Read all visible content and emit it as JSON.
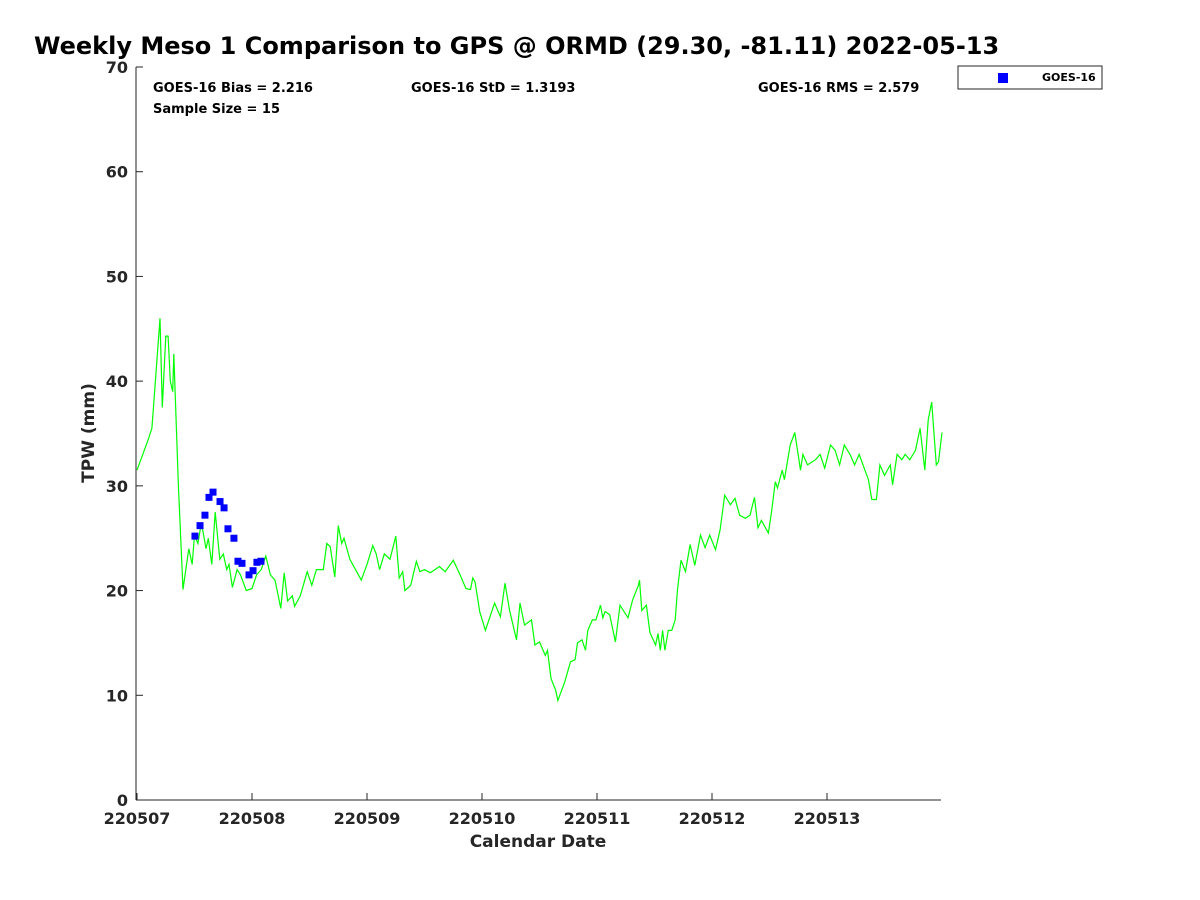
{
  "chart_data": {
    "type": "line",
    "title": "Weekly Meso 1 Comparison to GPS @ ORMD (29.30, -81.11) 2022-05-13",
    "xlabel": "Calendar Date",
    "ylabel": "TPW (mm)",
    "xlim": [
      0,
      7
    ],
    "ylim": [
      0,
      70
    ],
    "x_units": "days since 220507",
    "xticks": [
      0,
      1,
      2,
      3,
      4,
      5,
      6
    ],
    "xtick_labels": [
      "220507",
      "220508",
      "220509",
      "220510",
      "220511",
      "220512",
      "220513"
    ],
    "yticks": [
      0,
      10,
      20,
      30,
      40,
      50,
      60,
      70
    ],
    "ytick_labels": [
      "0",
      "10",
      "20",
      "30",
      "40",
      "50",
      "60",
      "70"
    ],
    "grid": false,
    "legend": {
      "placement": "top-right outside",
      "entries": [
        "GOES-16"
      ]
    },
    "annotations": {
      "bias": "GOES-16 Bias = 2.216",
      "std": "GOES-16 StD = 1.3193",
      "rms": "GOES-16 RMS = 2.579",
      "sample": "Sample Size = 15"
    },
    "series": [
      {
        "name": "GPS",
        "kind": "line",
        "color": "#00ff00",
        "x": [
          0,
          0.05,
          0.1,
          0.13,
          0.16,
          0.2,
          0.22,
          0.25,
          0.27,
          0.29,
          0.31,
          0.32,
          0.36,
          0.4,
          0.45,
          0.48,
          0.5,
          0.53,
          0.56,
          0.6,
          0.62,
          0.65,
          0.68,
          0.72,
          0.75,
          0.78,
          0.8,
          0.83,
          0.87,
          0.9,
          0.95,
          1.0,
          1.04,
          1.08,
          1.12,
          1.16,
          1.2,
          1.25,
          1.28,
          1.31,
          1.35,
          1.37,
          1.42,
          1.48,
          1.52,
          1.56,
          1.62,
          1.65,
          1.68,
          1.72,
          1.75,
          1.78,
          1.8,
          1.85,
          1.9,
          1.95,
          2.0,
          2.05,
          2.08,
          2.11,
          2.15,
          2.2,
          2.25,
          2.28,
          2.31,
          2.33,
          2.38,
          2.43,
          2.46,
          2.5,
          2.55,
          2.63,
          2.68,
          2.75,
          2.81,
          2.86,
          2.9,
          2.92,
          2.94,
          2.98,
          3.03,
          3.11,
          3.16,
          3.2,
          3.24,
          3.3,
          3.33,
          3.37,
          3.43,
          3.46,
          3.5,
          3.55,
          3.57,
          3.6,
          3.64,
          3.66,
          3.72,
          3.77,
          3.81,
          3.83,
          3.87,
          3.9,
          3.92,
          3.96,
          3.99,
          4.03,
          4.05,
          4.07,
          4.11,
          4.16,
          4.2,
          4.27,
          4.31,
          4.36,
          4.37,
          4.39,
          4.43,
          4.46,
          4.51,
          4.53,
          4.55,
          4.57,
          4.59,
          4.62,
          4.65,
          4.68,
          4.7,
          4.73,
          4.77,
          4.81,
          4.85,
          4.9,
          4.94,
          4.98,
          5.03,
          5.07,
          5.11,
          5.16,
          5.2,
          5.24,
          5.29,
          5.33,
          5.37,
          5.4,
          5.43,
          5.49,
          5.52,
          5.55,
          5.57,
          5.61,
          5.63,
          5.68,
          5.72,
          5.77,
          5.79,
          5.83,
          5.9,
          5.94,
          5.98,
          6.03,
          6.07,
          6.11,
          6.15,
          6.2,
          6.24,
          6.28,
          6.33,
          6.36,
          6.39,
          6.43,
          6.46,
          6.5,
          6.55,
          6.57,
          6.61,
          6.65,
          6.68,
          6.72,
          6.77,
          6.81,
          6.85,
          6.88,
          6.91,
          6.95,
          6.97,
          7.0
        ],
        "y": [
          31.5,
          33,
          34.5,
          35.5,
          40,
          46,
          37.5,
          44.3,
          44.3,
          40,
          39,
          42.6,
          30,
          20.1,
          24,
          22.5,
          25.3,
          24.5,
          26.5,
          24,
          25,
          22.5,
          27.5,
          23,
          23.5,
          22,
          22.5,
          20.3,
          22,
          21.5,
          20,
          20.2,
          21.5,
          22,
          23.3,
          21.5,
          21,
          18.3,
          21.7,
          19,
          19.5,
          18.5,
          19.5,
          21.8,
          20.5,
          22,
          22,
          24.5,
          24.2,
          21.3,
          26.2,
          24.5,
          25,
          23,
          22,
          21,
          22.5,
          24.3,
          23.5,
          22,
          23.5,
          23,
          25.2,
          21.2,
          21.8,
          20,
          20.5,
          22.8,
          21.8,
          22,
          21.7,
          22.3,
          21.8,
          22.9,
          21.5,
          20.2,
          20.1,
          21.2,
          20.8,
          18.0,
          16.2,
          18.8,
          17.5,
          20.7,
          18.1,
          15.3,
          18.8,
          16.7,
          17.2,
          14.8,
          15.1,
          13.8,
          14.3,
          11.6,
          10.5,
          9.5,
          11.3,
          13.2,
          13.4,
          15.0,
          15.3,
          14.3,
          16.2,
          17.2,
          17.2,
          18.6,
          17.4,
          18.0,
          17.7,
          15.1,
          18.6,
          17.4,
          19.1,
          20.5,
          21.0,
          18.1,
          18.6,
          16.0,
          14.8,
          15.9,
          14.3,
          16.2,
          14.3,
          16.2,
          16.2,
          17.2,
          20.1,
          22.9,
          21.8,
          24.4,
          22.4,
          25.3,
          24.1,
          25.3,
          23.9,
          25.8,
          29.1,
          28.2,
          28.8,
          27.2,
          26.9,
          27.2,
          28.9,
          26.0,
          26.7,
          25.5,
          27.7,
          30.4,
          29.8,
          31.5,
          30.6,
          33.9,
          35.1,
          31.5,
          33.0,
          32.0,
          32.5,
          33.0,
          31.7,
          33.9,
          33.4,
          32.0,
          33.9,
          33.0,
          32.0,
          33.0,
          31.5,
          30.6,
          28.7,
          28.7,
          32.0,
          31.0,
          32.0,
          30.1,
          33.0,
          32.5,
          33.0,
          32.5,
          33.4,
          35.5,
          31.5,
          36.3,
          38.0,
          32.0,
          32.3,
          35.1
        ]
      },
      {
        "name": "GOES-16",
        "kind": "scatter",
        "marker": "square",
        "color": "#0000ff",
        "x": [
          0.504,
          0.548,
          0.591,
          0.626,
          0.661,
          0.722,
          0.757,
          0.791,
          0.843,
          0.878,
          0.913,
          0.974,
          1.009,
          1.043,
          1.078
        ],
        "y": [
          25.2,
          26.2,
          27.2,
          28.9,
          29.4,
          28.5,
          27.9,
          25.9,
          25.0,
          22.8,
          22.6,
          21.5,
          21.9,
          22.7,
          22.8
        ]
      }
    ]
  }
}
